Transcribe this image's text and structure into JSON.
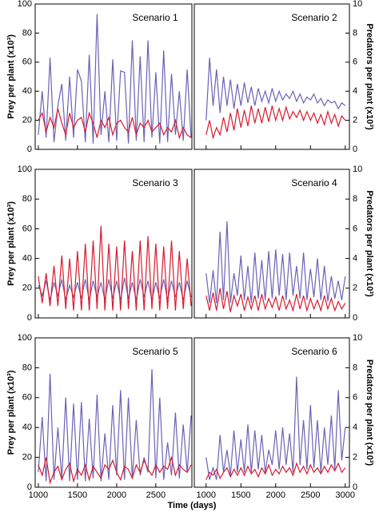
{
  "chart_data": [
    {
      "type": "line",
      "title": "Scenario 1",
      "ylabel": "Prey per plant (x10³)",
      "x": [
        1000,
        1050,
        1100,
        1150,
        1200,
        1250,
        1300,
        1350,
        1400,
        1450,
        1500,
        1550,
        1600,
        1650,
        1700,
        1750,
        1800,
        1850,
        1900,
        1950,
        2000,
        2050,
        2100,
        2150,
        2200,
        2250,
        2300,
        2350,
        2400,
        2450,
        2500,
        2550,
        2600,
        2650,
        2700,
        2750,
        2800,
        2850,
        2900,
        2950
      ],
      "xlim": [
        960,
        2960
      ],
      "xticks": [
        1000,
        1500,
        2000,
        2500
      ],
      "ylim": [
        0,
        100
      ],
      "yticks": [
        0,
        20,
        40,
        60,
        80,
        100
      ],
      "series": [
        {
          "color": "#6a63b5",
          "values": [
            10,
            40,
            8,
            63,
            5,
            30,
            45,
            6,
            50,
            8,
            55,
            47,
            5,
            65,
            4,
            93,
            10,
            40,
            5,
            62,
            6,
            54,
            53,
            4,
            75,
            6,
            64,
            5,
            75,
            8,
            53,
            4,
            68,
            5,
            52,
            10,
            40,
            6,
            55,
            8
          ]
        },
        {
          "color": "#d81a2f",
          "values": [
            20,
            25,
            12,
            22,
            15,
            28,
            18,
            10,
            25,
            15,
            20,
            22,
            12,
            25,
            18,
            8,
            20,
            15,
            22,
            10,
            18,
            20,
            15,
            12,
            22,
            10,
            18,
            15,
            20,
            12,
            15,
            18,
            10,
            15,
            12,
            20,
            8,
            15,
            10,
            8
          ]
        }
      ]
    },
    {
      "type": "line",
      "title": "Scenario 2",
      "y2label": "Predators per plant (x10³)",
      "x": [
        1000,
        1050,
        1100,
        1150,
        1200,
        1250,
        1300,
        1350,
        1400,
        1450,
        1500,
        1550,
        1600,
        1650,
        1700,
        1750,
        1800,
        1850,
        1900,
        1950,
        2000,
        2050,
        2100,
        2150,
        2200,
        2250,
        2300,
        2350,
        2400,
        2450,
        2500,
        2550,
        2600,
        2650,
        2700,
        2750,
        2800,
        2850,
        2900,
        2950,
        3000
      ],
      "xlim": [
        830,
        3060
      ],
      "xticks": [
        1000,
        1500,
        2000,
        2500,
        3000
      ],
      "y2lim": [
        0,
        10
      ],
      "y2ticks": [
        0,
        2,
        4,
        6,
        8,
        10
      ],
      "series": [
        {
          "color": "#6a63b5",
          "axis": "y2",
          "values": [
            2,
            6.3,
            3,
            5.5,
            2.5,
            5,
            3,
            4.8,
            2.8,
            4.5,
            3,
            4.6,
            3.2,
            4.3,
            3,
            4.2,
            3.3,
            4,
            3.2,
            4.2,
            3.3,
            4,
            3.4,
            3.8,
            3.5,
            4,
            3.3,
            3.8,
            3.2,
            3.6,
            3.4,
            3.8,
            3.2,
            3.5,
            3,
            3.4,
            3.2,
            3.3,
            2.8,
            3.2,
            3
          ]
        },
        {
          "color": "#d81a2f",
          "axis": "y2",
          "values": [
            1,
            2,
            0.8,
            1.5,
            1,
            2.2,
            1.2,
            2.5,
            1.3,
            2.8,
            1.5,
            2.7,
            1.6,
            3,
            1.8,
            2.8,
            1.8,
            2.9,
            1.9,
            3,
            2,
            2.8,
            2,
            2.9,
            2.1,
            2.6,
            2.2,
            2.7,
            2,
            2.6,
            2,
            2.5,
            1.8,
            2.4,
            1.7,
            2.6,
            1.8,
            2.4,
            1.6,
            2.3,
            2
          ]
        }
      ]
    },
    {
      "type": "line",
      "title": "Scenario 3",
      "ylabel": "Prey per plant (x10³)",
      "x": [
        1000,
        1050,
        1100,
        1150,
        1200,
        1250,
        1300,
        1350,
        1400,
        1450,
        1500,
        1550,
        1600,
        1650,
        1700,
        1750,
        1800,
        1850,
        1900,
        1950,
        2000,
        2050,
        2100,
        2150,
        2200,
        2250,
        2300,
        2350,
        2400,
        2450,
        2500,
        2550,
        2600,
        2650,
        2700,
        2750,
        2800,
        2850,
        2900,
        2950
      ],
      "xlim": [
        960,
        2960
      ],
      "xticks": [
        1000,
        1500,
        2000,
        2500
      ],
      "ylim": [
        0,
        100
      ],
      "yticks": [
        0,
        20,
        40,
        60,
        80,
        100
      ],
      "series": [
        {
          "color": "#6a63b5",
          "values": [
            22,
            15,
            25,
            12,
            24,
            15,
            26,
            12,
            22,
            14,
            24,
            13,
            26,
            12,
            25,
            14,
            24,
            12,
            26,
            13,
            25,
            12,
            27,
            13,
            24,
            12,
            26,
            14,
            25,
            12,
            24,
            13,
            26,
            12,
            25,
            14,
            24,
            12,
            25,
            14
          ]
        },
        {
          "color": "#d81a2f",
          "values": [
            28,
            10,
            30,
            8,
            35,
            8,
            42,
            6,
            40,
            5,
            45,
            5,
            50,
            5,
            52,
            6,
            62,
            5,
            50,
            5,
            48,
            5,
            52,
            6,
            45,
            5,
            52,
            5,
            55,
            6,
            50,
            5,
            48,
            6,
            52,
            5,
            45,
            6,
            40,
            8
          ]
        }
      ]
    },
    {
      "type": "line",
      "title": "Scenario 4",
      "y2label": "Predators per plant (x10³)",
      "x": [
        1000,
        1050,
        1100,
        1150,
        1200,
        1250,
        1300,
        1350,
        1400,
        1450,
        1500,
        1550,
        1600,
        1650,
        1700,
        1750,
        1800,
        1850,
        1900,
        1950,
        2000,
        2050,
        2100,
        2150,
        2200,
        2250,
        2300,
        2350,
        2400,
        2450,
        2500,
        2550,
        2600,
        2650,
        2700,
        2750,
        2800,
        2850,
        2900,
        2950,
        3000
      ],
      "xlim": [
        830,
        3060
      ],
      "xticks": [
        1000,
        1500,
        2000,
        2500,
        3000
      ],
      "y2lim": [
        0,
        10
      ],
      "y2ticks": [
        0,
        2,
        4,
        6,
        8,
        10
      ],
      "series": [
        {
          "color": "#6a63b5",
          "axis": "y2",
          "values": [
            3,
            1,
            3.2,
            1,
            5.8,
            1.2,
            6.5,
            1,
            3,
            1.5,
            4.2,
            1.2,
            3.5,
            1,
            4.4,
            1.3,
            3.9,
            1.2,
            4.5,
            1.3,
            4.6,
            1.5,
            4.3,
            1.2,
            4.4,
            1.5,
            3.5,
            1.3,
            4.4,
            1.2,
            3.3,
            1.4,
            4,
            1.2,
            3.5,
            1.1,
            2.8,
            1.3,
            2.5,
            1.2,
            2.8
          ]
        },
        {
          "color": "#d81a2f",
          "axis": "y2",
          "values": [
            1.5,
            0.5,
            1.7,
            0.5,
            2,
            0.6,
            1.8,
            0.4,
            1.5,
            0.8,
            1.6,
            0.5,
            1.4,
            0.6,
            1.5,
            0.5,
            1.6,
            0.6,
            1.3,
            0.7,
            1.4,
            0.5,
            1.5,
            0.6,
            1.2,
            0.5,
            1.6,
            0.6,
            1.5,
            0.5,
            1.3,
            0.6,
            1.2,
            0.5,
            1.5,
            0.6,
            1.3,
            0.5,
            1.1,
            0.6,
            1
          ]
        }
      ]
    },
    {
      "type": "line",
      "title": "Scenario 5",
      "ylabel": "Prey per plant (x10³)",
      "xlabel": "Time (days)",
      "x": [
        1000,
        1050,
        1100,
        1150,
        1200,
        1250,
        1300,
        1350,
        1400,
        1450,
        1500,
        1550,
        1600,
        1650,
        1700,
        1750,
        1800,
        1850,
        1900,
        1950,
        2000,
        2050,
        2100,
        2150,
        2200,
        2250,
        2300,
        2350,
        2400,
        2450,
        2500,
        2550,
        2600,
        2650,
        2700,
        2750,
        2800,
        2850,
        2900,
        2950
      ],
      "xlim": [
        960,
        2960
      ],
      "xticks": [
        1000,
        1500,
        2000,
        2500
      ],
      "ylim": [
        0,
        100
      ],
      "yticks": [
        0,
        20,
        40,
        60,
        80,
        100
      ],
      "series": [
        {
          "color": "#6a63b5",
          "values": [
            10,
            47,
            4,
            76,
            5,
            40,
            6,
            60,
            4,
            56,
            5,
            57,
            4,
            46,
            6,
            62,
            4,
            36,
            5,
            55,
            8,
            65,
            5,
            60,
            6,
            45,
            8,
            20,
            10,
            79,
            6,
            60,
            5,
            30,
            8,
            50,
            6,
            42,
            10,
            48
          ]
        },
        {
          "color": "#d81a2f",
          "values": [
            15,
            8,
            20,
            3,
            10,
            14,
            5,
            12,
            16,
            4,
            12,
            8,
            15,
            5,
            14,
            10,
            6,
            15,
            12,
            18,
            10,
            5,
            14,
            12,
            6,
            15,
            10,
            18,
            12,
            8,
            15,
            10,
            14,
            12,
            20,
            8,
            15,
            12,
            10,
            15
          ]
        }
      ]
    },
    {
      "type": "line",
      "title": "Scenario 6",
      "y2label": "Predators per plant (x10³)",
      "x": [
        1000,
        1050,
        1100,
        1150,
        1200,
        1250,
        1300,
        1350,
        1400,
        1450,
        1500,
        1550,
        1600,
        1650,
        1700,
        1750,
        1800,
        1850,
        1900,
        1950,
        2000,
        2050,
        2100,
        2150,
        2200,
        2250,
        2300,
        2350,
        2400,
        2450,
        2500,
        2550,
        2600,
        2650,
        2700,
        2750,
        2800,
        2850,
        2900,
        2950,
        3000
      ],
      "xlim": [
        830,
        3060
      ],
      "xticks": [
        1000,
        1500,
        2000,
        2500,
        3000
      ],
      "y2lim": [
        0,
        10
      ],
      "y2ticks": [
        0,
        2,
        4,
        6,
        8,
        10
      ],
      "series": [
        {
          "color": "#6a63b5",
          "axis": "y2",
          "values": [
            2,
            0.5,
            1.3,
            0.5,
            3.5,
            1,
            2.5,
            0.8,
            3.8,
            1,
            3.2,
            1,
            4.2,
            1,
            3.8,
            1.2,
            3.5,
            1,
            2.5,
            1.5,
            3.8,
            1.2,
            4,
            1.5,
            3.6,
            1,
            7.4,
            1.5,
            4.5,
            1.2,
            5.5,
            1.3,
            4.5,
            1,
            4,
            1.5,
            4.8,
            1.2,
            6.5,
            1.8,
            4
          ]
        },
        {
          "color": "#d81a2f",
          "axis": "y2",
          "values": [
            0.5,
            1,
            0.8,
            1.2,
            0.6,
            1,
            1.3,
            0.7,
            1.2,
            0.8,
            1.3,
            0.8,
            1.4,
            0.9,
            1.2,
            0.7,
            1.3,
            0.9,
            1.5,
            0.8,
            1.2,
            0.9,
            1.4,
            1,
            1.3,
            0.8,
            1.6,
            1,
            1.4,
            0.9,
            1.5,
            1,
            1.3,
            0.9,
            1.4,
            1,
            1.5,
            1.1,
            1.6,
            1,
            1.3
          ]
        }
      ]
    }
  ]
}
